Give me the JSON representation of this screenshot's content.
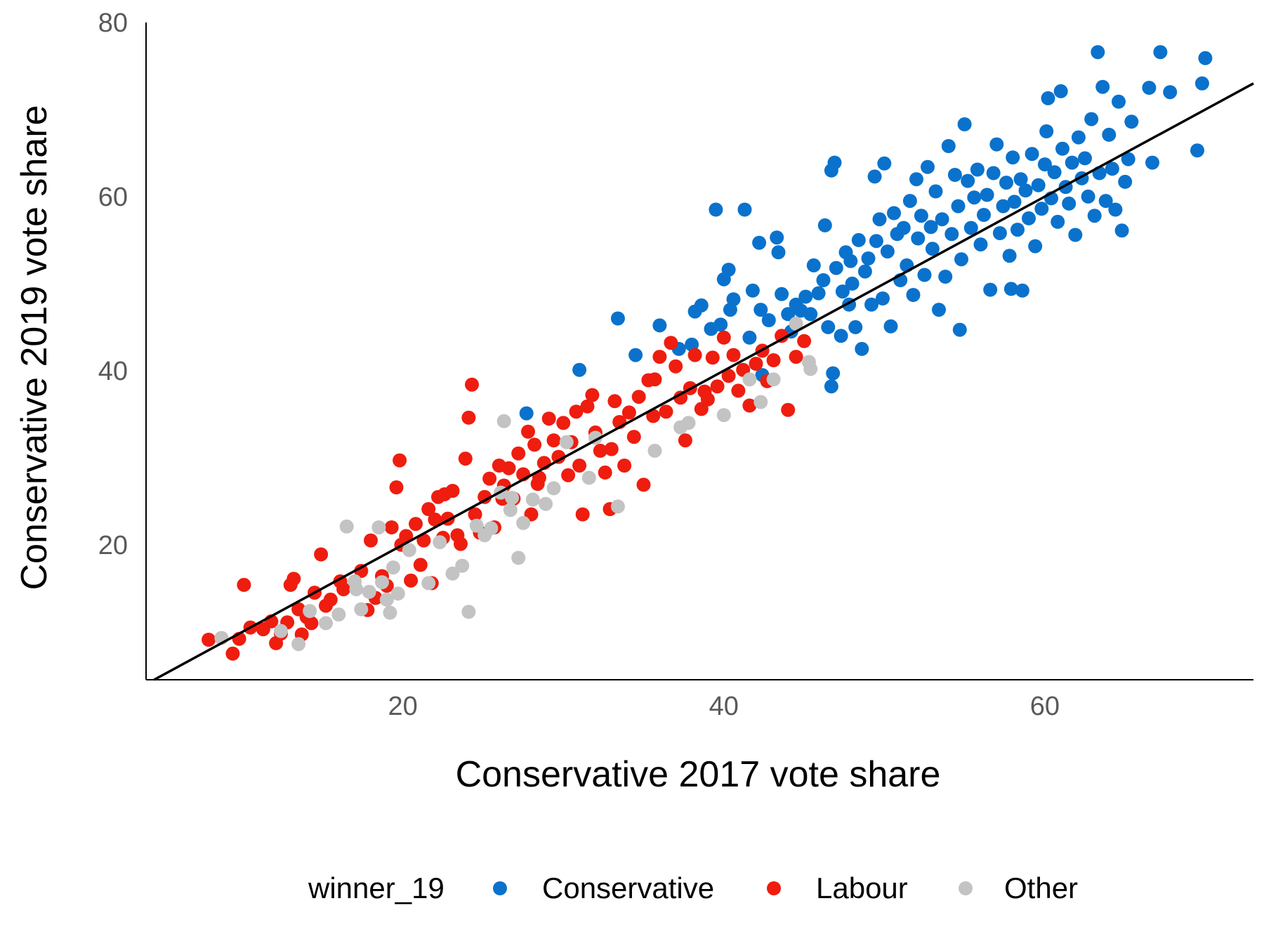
{
  "chart_data": {
    "type": "scatter",
    "xlabel": "Conservative 2017 vote share",
    "ylabel": "Conservative 2019 vote share",
    "xlim": [
      4,
      73
    ],
    "ylim": [
      4.5,
      80
    ],
    "xticks": [
      20,
      40,
      60
    ],
    "yticks": [
      20,
      40,
      60,
      80
    ],
    "grid": false,
    "legend_position": "bottom",
    "legend_title": "winner_19",
    "reference_line": {
      "type": "identity",
      "color": "#000000"
    },
    "series": [
      {
        "name": "Conservative",
        "color": "#0A72CC",
        "points": [
          [
            27.7,
            35.1
          ],
          [
            31.0,
            40.1
          ],
          [
            33.4,
            46.0
          ],
          [
            34.5,
            41.8
          ],
          [
            36.0,
            45.2
          ],
          [
            37.2,
            42.5
          ],
          [
            38.0,
            43.0
          ],
          [
            38.2,
            46.8
          ],
          [
            38.6,
            47.5
          ],
          [
            39.5,
            58.5
          ],
          [
            39.2,
            44.8
          ],
          [
            39.8,
            45.3
          ],
          [
            40.0,
            50.5
          ],
          [
            40.3,
            51.6
          ],
          [
            40.6,
            48.2
          ],
          [
            40.4,
            47.0
          ],
          [
            41.3,
            58.5
          ],
          [
            41.6,
            43.8
          ],
          [
            41.8,
            49.2
          ],
          [
            42.3,
            47.0
          ],
          [
            42.2,
            54.7
          ],
          [
            42.4,
            39.5
          ],
          [
            42.8,
            45.8
          ],
          [
            43.3,
            55.3
          ],
          [
            43.4,
            53.6
          ],
          [
            43.6,
            48.8
          ],
          [
            44.0,
            46.5
          ],
          [
            44.2,
            44.5
          ],
          [
            44.5,
            47.6
          ],
          [
            44.8,
            46.9
          ],
          [
            45.1,
            48.5
          ],
          [
            45.4,
            46.5
          ],
          [
            45.6,
            52.1
          ],
          [
            45.9,
            48.9
          ],
          [
            46.2,
            50.4
          ],
          [
            46.3,
            56.7
          ],
          [
            46.5,
            45.0
          ],
          [
            46.7,
            38.2
          ],
          [
            46.8,
            39.7
          ],
          [
            46.7,
            63.0
          ],
          [
            46.9,
            63.9
          ],
          [
            47.0,
            51.8
          ],
          [
            47.3,
            44.0
          ],
          [
            47.4,
            49.1
          ],
          [
            47.6,
            53.6
          ],
          [
            47.8,
            47.6
          ],
          [
            47.9,
            52.6
          ],
          [
            48.0,
            50.0
          ],
          [
            48.2,
            45.0
          ],
          [
            48.4,
            55.0
          ],
          [
            48.6,
            42.5
          ],
          [
            48.8,
            51.4
          ],
          [
            49.0,
            52.9
          ],
          [
            49.2,
            47.6
          ],
          [
            49.4,
            62.3
          ],
          [
            49.5,
            54.9
          ],
          [
            49.7,
            57.4
          ],
          [
            49.9,
            48.3
          ],
          [
            50.0,
            63.8
          ],
          [
            50.2,
            53.7
          ],
          [
            50.4,
            45.1
          ],
          [
            50.6,
            58.1
          ],
          [
            50.8,
            55.7
          ],
          [
            51.0,
            50.4
          ],
          [
            51.2,
            56.4
          ],
          [
            51.4,
            52.1
          ],
          [
            51.6,
            59.5
          ],
          [
            51.8,
            48.7
          ],
          [
            52.0,
            62.0
          ],
          [
            52.1,
            55.2
          ],
          [
            52.3,
            57.8
          ],
          [
            52.5,
            51.0
          ],
          [
            52.7,
            63.4
          ],
          [
            52.9,
            56.5
          ],
          [
            53.0,
            54.0
          ],
          [
            53.2,
            60.6
          ],
          [
            53.4,
            47.0
          ],
          [
            53.6,
            57.4
          ],
          [
            53.8,
            50.8
          ],
          [
            54.0,
            65.8
          ],
          [
            54.2,
            55.7
          ],
          [
            54.4,
            62.5
          ],
          [
            54.6,
            58.9
          ],
          [
            54.7,
            44.7
          ],
          [
            54.8,
            52.8
          ],
          [
            55.0,
            68.3
          ],
          [
            55.2,
            61.8
          ],
          [
            55.4,
            56.4
          ],
          [
            55.6,
            59.9
          ],
          [
            55.8,
            63.1
          ],
          [
            56.0,
            54.5
          ],
          [
            56.2,
            57.9
          ],
          [
            56.4,
            60.2
          ],
          [
            56.6,
            49.3
          ],
          [
            56.8,
            62.7
          ],
          [
            57.0,
            66.0
          ],
          [
            57.2,
            55.8
          ],
          [
            57.4,
            58.9
          ],
          [
            57.6,
            61.6
          ],
          [
            57.8,
            53.2
          ],
          [
            57.9,
            49.4
          ],
          [
            58.0,
            64.5
          ],
          [
            58.1,
            59.4
          ],
          [
            58.3,
            56.2
          ],
          [
            58.5,
            62.0
          ],
          [
            58.6,
            49.2
          ],
          [
            58.8,
            60.7
          ],
          [
            59.0,
            57.5
          ],
          [
            59.2,
            64.9
          ],
          [
            59.4,
            54.3
          ],
          [
            59.6,
            61.3
          ],
          [
            59.8,
            58.6
          ],
          [
            60.0,
            63.7
          ],
          [
            60.1,
            67.5
          ],
          [
            60.2,
            71.3
          ],
          [
            60.4,
            59.8
          ],
          [
            60.6,
            62.8
          ],
          [
            60.8,
            57.1
          ],
          [
            61.0,
            72.1
          ],
          [
            61.1,
            65.5
          ],
          [
            61.3,
            61.1
          ],
          [
            61.5,
            59.2
          ],
          [
            61.7,
            63.9
          ],
          [
            61.9,
            55.6
          ],
          [
            62.1,
            66.8
          ],
          [
            62.3,
            62.1
          ],
          [
            62.5,
            64.4
          ],
          [
            62.7,
            60.0
          ],
          [
            62.9,
            68.9
          ],
          [
            63.1,
            57.8
          ],
          [
            63.3,
            76.6
          ],
          [
            63.4,
            62.7
          ],
          [
            63.6,
            72.6
          ],
          [
            63.8,
            59.5
          ],
          [
            64.0,
            67.1
          ],
          [
            64.2,
            63.2
          ],
          [
            64.4,
            58.5
          ],
          [
            64.6,
            70.9
          ],
          [
            64.8,
            56.1
          ],
          [
            65.0,
            61.7
          ],
          [
            65.2,
            64.3
          ],
          [
            65.4,
            68.6
          ],
          [
            66.5,
            72.5
          ],
          [
            67.2,
            76.6
          ],
          [
            67.8,
            72.0
          ],
          [
            69.5,
            65.3
          ],
          [
            69.8,
            73.0
          ],
          [
            70.0,
            75.9
          ],
          [
            66.7,
            63.9
          ]
        ]
      },
      {
        "name": "Labour",
        "color": "#EE1D0F",
        "points": [
          [
            7.9,
            9.1
          ],
          [
            9.4,
            7.5
          ],
          [
            9.8,
            9.2
          ],
          [
            10.1,
            15.4
          ],
          [
            10.5,
            10.5
          ],
          [
            11.3,
            10.3
          ],
          [
            11.8,
            11.2
          ],
          [
            12.1,
            8.7
          ],
          [
            12.4,
            9.8
          ],
          [
            12.8,
            11.1
          ],
          [
            13.0,
            15.4
          ],
          [
            13.2,
            16.1
          ],
          [
            13.5,
            12.6
          ],
          [
            13.7,
            9.7
          ],
          [
            14.0,
            11.7
          ],
          [
            14.3,
            11.0
          ],
          [
            14.5,
            14.5
          ],
          [
            14.9,
            18.9
          ],
          [
            15.2,
            13.0
          ],
          [
            15.5,
            13.7
          ],
          [
            16.1,
            15.8
          ],
          [
            16.3,
            14.9
          ],
          [
            17.4,
            17.0
          ],
          [
            17.8,
            12.5
          ],
          [
            18.0,
            20.5
          ],
          [
            18.3,
            13.9
          ],
          [
            18.7,
            16.4
          ],
          [
            19.0,
            15.3
          ],
          [
            19.3,
            22.0
          ],
          [
            19.6,
            26.6
          ],
          [
            19.8,
            29.7
          ],
          [
            19.9,
            20.0
          ],
          [
            20.2,
            21.0
          ],
          [
            20.5,
            15.9
          ],
          [
            20.8,
            22.4
          ],
          [
            21.1,
            17.7
          ],
          [
            21.3,
            20.5
          ],
          [
            21.6,
            24.1
          ],
          [
            21.8,
            15.6
          ],
          [
            22.0,
            22.9
          ],
          [
            22.2,
            25.5
          ],
          [
            22.5,
            20.8
          ],
          [
            22.8,
            23.0
          ],
          [
            23.1,
            26.2
          ],
          [
            23.4,
            21.1
          ],
          [
            23.6,
            20.1
          ],
          [
            23.9,
            29.9
          ],
          [
            24.1,
            34.6
          ],
          [
            24.3,
            38.4
          ],
          [
            24.5,
            23.5
          ],
          [
            24.8,
            21.4
          ],
          [
            25.1,
            25.5
          ],
          [
            25.4,
            27.6
          ],
          [
            25.7,
            22.0
          ],
          [
            26.0,
            29.1
          ],
          [
            26.3,
            26.8
          ],
          [
            26.6,
            28.8
          ],
          [
            26.9,
            25.3
          ],
          [
            27.2,
            30.5
          ],
          [
            27.5,
            28.1
          ],
          [
            27.8,
            33.0
          ],
          [
            28.0,
            23.5
          ],
          [
            28.2,
            31.5
          ],
          [
            28.5,
            27.7
          ],
          [
            28.8,
            29.4
          ],
          [
            29.1,
            34.5
          ],
          [
            29.4,
            32.0
          ],
          [
            29.7,
            30.1
          ],
          [
            30.0,
            34.0
          ],
          [
            30.3,
            28.0
          ],
          [
            30.5,
            31.8
          ],
          [
            30.8,
            35.3
          ],
          [
            31.0,
            29.1
          ],
          [
            31.2,
            23.5
          ],
          [
            31.5,
            35.9
          ],
          [
            31.8,
            37.2
          ],
          [
            32.0,
            32.9
          ],
          [
            32.3,
            30.8
          ],
          [
            32.6,
            28.3
          ],
          [
            32.9,
            24.1
          ],
          [
            33.2,
            36.5
          ],
          [
            33.5,
            34.1
          ],
          [
            33.8,
            29.1
          ],
          [
            34.1,
            35.2
          ],
          [
            34.4,
            32.4
          ],
          [
            34.7,
            37.0
          ],
          [
            35.0,
            26.9
          ],
          [
            35.3,
            38.9
          ],
          [
            35.6,
            34.8
          ],
          [
            36.0,
            41.6
          ],
          [
            36.4,
            35.3
          ],
          [
            36.7,
            43.2
          ],
          [
            37.0,
            40.5
          ],
          [
            37.3,
            36.9
          ],
          [
            37.6,
            32.0
          ],
          [
            37.9,
            38.0
          ],
          [
            38.2,
            41.8
          ],
          [
            38.6,
            35.6
          ],
          [
            39.0,
            36.7
          ],
          [
            39.3,
            41.5
          ],
          [
            39.6,
            38.2
          ],
          [
            40.0,
            43.8
          ],
          [
            40.3,
            39.4
          ],
          [
            40.6,
            41.8
          ],
          [
            40.9,
            37.7
          ],
          [
            41.2,
            40.1
          ],
          [
            41.6,
            36.0
          ],
          [
            42.0,
            40.8
          ],
          [
            42.4,
            42.3
          ],
          [
            42.7,
            38.8
          ],
          [
            43.1,
            41.2
          ],
          [
            43.6,
            44.0
          ],
          [
            44.0,
            35.5
          ],
          [
            44.5,
            41.6
          ],
          [
            45.0,
            43.4
          ],
          [
            26.2,
            25.3
          ],
          [
            28.4,
            27.0
          ],
          [
            22.6,
            25.8
          ],
          [
            33.0,
            31.0
          ],
          [
            35.7,
            39.0
          ],
          [
            38.8,
            37.6
          ]
        ]
      },
      {
        "name": "Other",
        "color": "#C3C3C3",
        "points": [
          [
            8.7,
            9.3
          ],
          [
            12.4,
            10.1
          ],
          [
            13.5,
            8.6
          ],
          [
            14.2,
            12.4
          ],
          [
            15.2,
            11.0
          ],
          [
            16.0,
            12.0
          ],
          [
            16.5,
            22.1
          ],
          [
            17.0,
            15.8
          ],
          [
            17.4,
            12.6
          ],
          [
            17.9,
            14.6
          ],
          [
            18.5,
            22.0
          ],
          [
            18.7,
            15.7
          ],
          [
            19.0,
            13.7
          ],
          [
            19.2,
            12.2
          ],
          [
            19.4,
            17.4
          ],
          [
            19.7,
            14.4
          ],
          [
            20.4,
            19.4
          ],
          [
            21.6,
            15.6
          ],
          [
            22.3,
            20.3
          ],
          [
            23.1,
            16.7
          ],
          [
            23.7,
            17.6
          ],
          [
            24.1,
            12.3
          ],
          [
            24.6,
            22.2
          ],
          [
            25.1,
            21.1
          ],
          [
            25.5,
            21.9
          ],
          [
            26.1,
            26.0
          ],
          [
            26.3,
            34.2
          ],
          [
            26.7,
            24.0
          ],
          [
            27.2,
            18.5
          ],
          [
            27.5,
            22.5
          ],
          [
            28.1,
            25.2
          ],
          [
            28.9,
            24.7
          ],
          [
            29.4,
            26.5
          ],
          [
            30.2,
            31.8
          ],
          [
            31.6,
            27.7
          ],
          [
            32.0,
            32.3
          ],
          [
            33.4,
            24.4
          ],
          [
            35.7,
            30.8
          ],
          [
            37.3,
            33.5
          ],
          [
            37.8,
            34.0
          ],
          [
            40.0,
            34.9
          ],
          [
            41.6,
            39.0
          ],
          [
            42.3,
            36.4
          ],
          [
            43.1,
            39.0
          ],
          [
            44.5,
            45.4
          ],
          [
            45.3,
            41.0
          ],
          [
            45.4,
            40.2
          ],
          [
            26.8,
            25.4
          ],
          [
            17.1,
            14.9
          ]
        ]
      }
    ]
  }
}
